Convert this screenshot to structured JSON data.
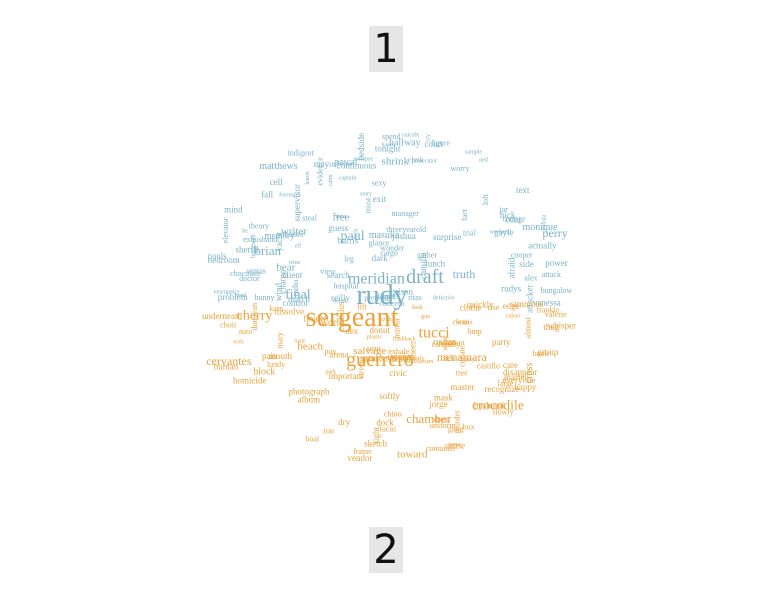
{
  "labels": {
    "top": "1",
    "bottom": "2"
  },
  "colors": {
    "group1": "#7ab3c7",
    "group2": "#e8a33c"
  },
  "wordcloud": {
    "group1_words": [
      "rudy",
      "draft",
      "meridian",
      "final",
      "paul",
      "brian",
      "perry",
      "truth",
      "free",
      "bear",
      "writer",
      "shrink",
      "matthews",
      "masuka",
      "hallway",
      "monique",
      "supervisor",
      "mayor",
      "prison",
      "yacht",
      "rudys",
      "memory",
      "court",
      "pascal",
      "surprise",
      "bedroom",
      "reilly",
      "joshua",
      "attacker",
      "vanessa",
      "exit",
      "continuous",
      "camilla",
      "pauls",
      "hick",
      "cont",
      "power",
      "problem",
      "gayle",
      "cell",
      "sheriff",
      "tonight",
      "dark",
      "harris",
      "charge",
      "afraid",
      "guess",
      "moser",
      "search",
      "control",
      "wind",
      "lunch",
      "bedside",
      "client",
      "match",
      "text",
      "actually",
      "mind",
      "fall",
      "side",
      "view",
      "worry",
      "chocolate",
      "spend",
      "fact",
      "trial",
      "attack",
      "hospital",
      "doctor",
      "theory",
      "tool",
      "pretend",
      "indigent",
      "concern",
      "bungalow",
      "elevator",
      "cooper",
      "evidence",
      "santas",
      "jar",
      "sexy",
      "manager",
      "gather",
      "clerk",
      "glance",
      "cargo",
      "forget",
      "must",
      "bunny",
      "wonder",
      "figure",
      "cottage",
      "threeyearold",
      "exhusband",
      "leg",
      "radio",
      "alex",
      "steal",
      "loft",
      "ritas",
      "boyfriend",
      "lawyer",
      "karen",
      "emergency",
      "suicide",
      "nina",
      "batista",
      "sample",
      "captain",
      "wine",
      "have",
      "calm",
      "cry",
      "tach",
      "elf",
      "neil",
      "hotel",
      "weekend",
      "detail",
      "forensics",
      "prosecutor",
      "lie",
      "story",
      "collapse",
      "defective"
    ],
    "group2_words": [
      "sergeant",
      "guerrero",
      "tucci",
      "cherry",
      "crocodile",
      "chamber",
      "mcnamara",
      "cervantes",
      "salvage",
      "oscar",
      "beach",
      "toward",
      "block",
      "vicky",
      "cross",
      "world",
      "jorge",
      "mariel",
      "album",
      "spin",
      "dry",
      "everyone",
      "homicide",
      "finally",
      "mouth",
      "thug",
      "sheer",
      "dissolve",
      "important",
      "donut",
      "softly",
      "clothe",
      "mask",
      "vendor",
      "recognize",
      "group",
      "photograph",
      "happy",
      "arena",
      "pain",
      "master",
      "care",
      "tight",
      "castillos",
      "civic",
      "husband",
      "quickly",
      "underneath",
      "edge",
      "cause",
      "crowd",
      "dock",
      "human",
      "whisper",
      "sketch",
      "disappear",
      "teenage",
      "dex",
      "simmons",
      "party",
      "book",
      "street",
      "castillo",
      "valerie",
      "chino",
      "tree",
      "frame",
      "lundy",
      "slowly",
      "box",
      "limp",
      "rise",
      "sean",
      "carefully",
      "clean",
      "container",
      "lucas",
      "donovan",
      "wipe",
      "moment",
      "gang",
      "kara",
      "uniform",
      "choir",
      "frankie",
      "auto",
      "murder",
      "almost",
      "exhale",
      "dress",
      "large",
      "collate",
      "lift",
      "ton",
      "deb",
      "boat",
      "jaworski",
      "mary",
      "mirror",
      "pov",
      "matt",
      "joey",
      "gun",
      "worker",
      "airstream",
      "cuban",
      "flashback",
      "early",
      "dusk",
      "game",
      "wife",
      "park",
      "plastic",
      "bizkit"
    ]
  }
}
